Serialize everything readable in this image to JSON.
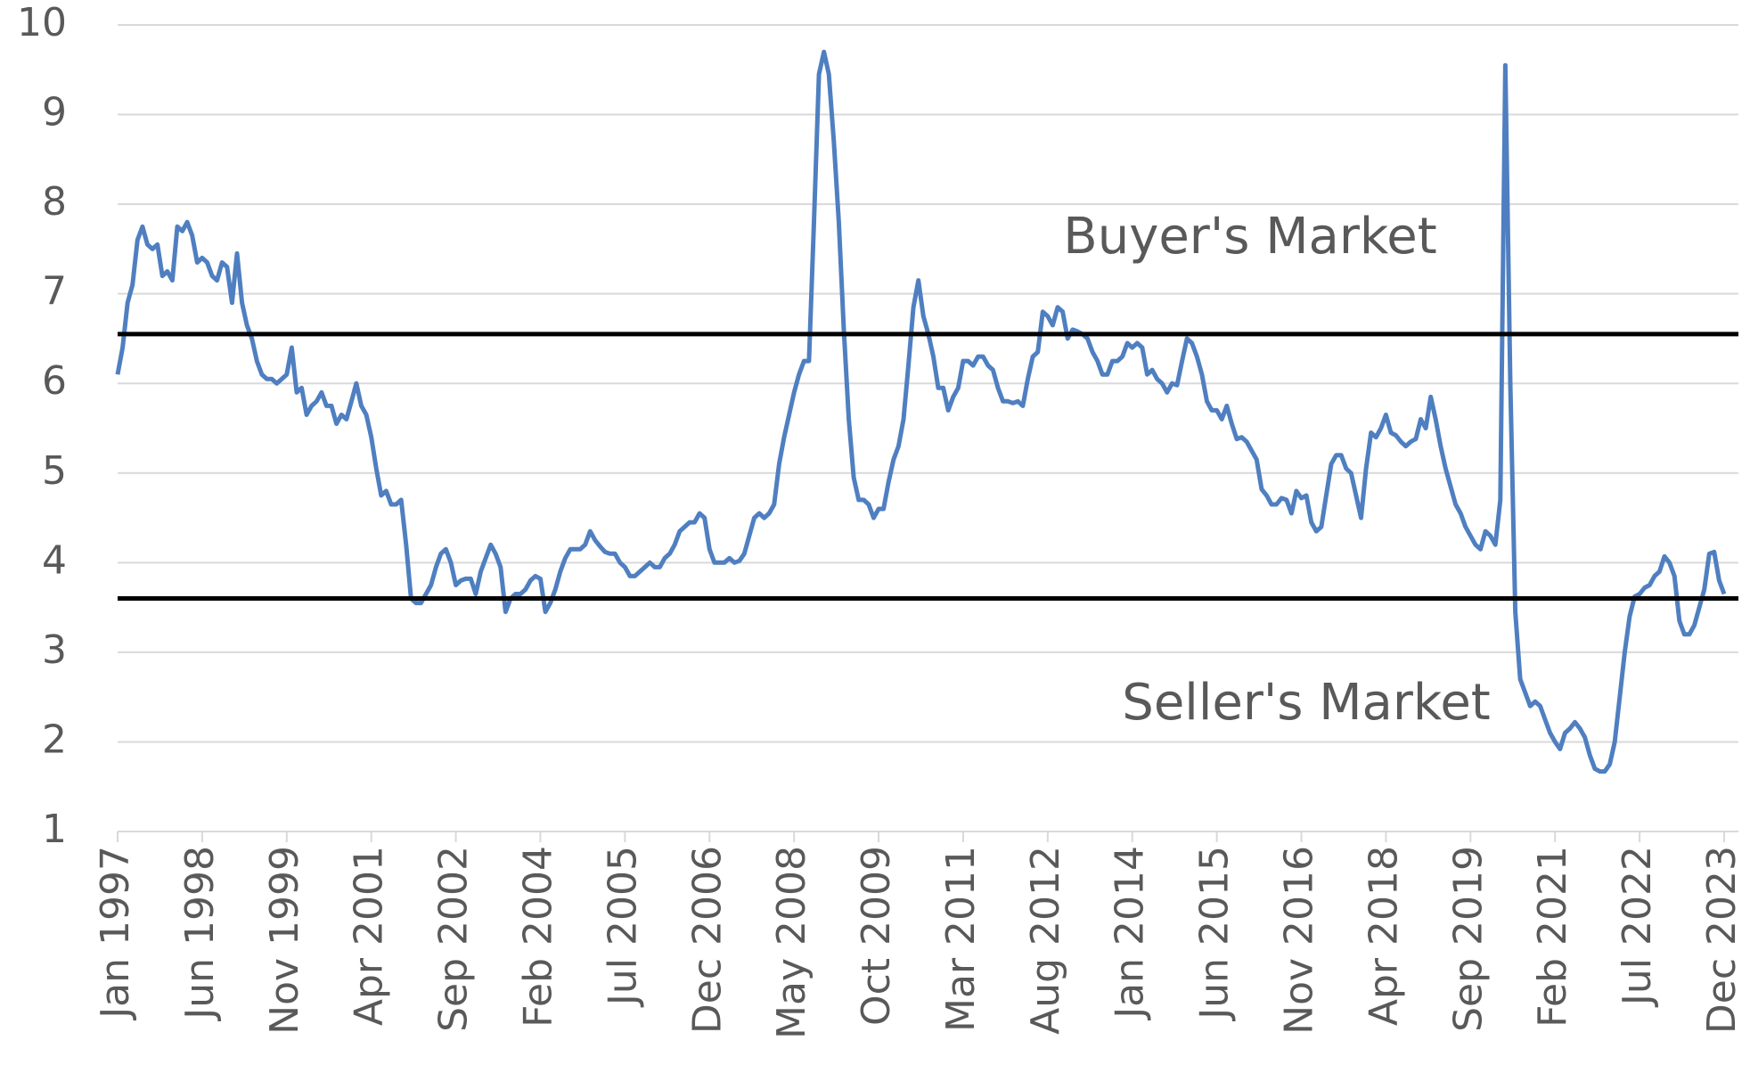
{
  "chart_data": {
    "type": "line",
    "annotations": [
      "Buyer's Market",
      "Seller's Market"
    ],
    "reference_lines": [
      6.55,
      3.6
    ],
    "reference_color": "#000000",
    "categories": [
      "Jan 1997",
      null,
      null,
      null,
      null,
      null,
      null,
      null,
      null,
      null,
      null,
      null,
      null,
      null,
      null,
      null,
      null,
      "Jun 1998",
      null,
      null,
      null,
      null,
      null,
      null,
      null,
      null,
      null,
      null,
      null,
      null,
      null,
      null,
      null,
      null,
      "Nov 1999",
      null,
      null,
      null,
      null,
      null,
      null,
      null,
      null,
      null,
      null,
      null,
      null,
      null,
      null,
      null,
      null,
      "Apr 2001",
      null,
      null,
      null,
      null,
      null,
      null,
      null,
      null,
      null,
      null,
      null,
      null,
      null,
      null,
      null,
      null,
      "Sep 2002",
      null,
      null,
      null,
      null,
      null,
      null,
      null,
      null,
      null,
      null,
      null,
      null,
      null,
      null,
      null,
      null,
      "Feb 2004",
      null,
      null,
      null,
      null,
      null,
      null,
      null,
      null,
      null,
      null,
      null,
      null,
      null,
      null,
      null,
      null,
      "Jul 2005",
      null,
      null,
      null,
      null,
      null,
      null,
      null,
      null,
      null,
      null,
      null,
      null,
      null,
      null,
      null,
      null,
      "Dec 2006",
      null,
      null,
      null,
      null,
      null,
      null,
      null,
      null,
      null,
      null,
      null,
      null,
      null,
      null,
      null,
      null,
      "May 2008",
      null,
      null,
      null,
      null,
      null,
      null,
      null,
      null,
      null,
      null,
      null,
      null,
      null,
      null,
      null,
      null,
      "Oct 2009",
      null,
      null,
      null,
      null,
      null,
      null,
      null,
      null,
      null,
      null,
      null,
      null,
      null,
      null,
      null,
      null,
      "Mar 2011",
      null,
      null,
      null,
      null,
      null,
      null,
      null,
      null,
      null,
      null,
      null,
      null,
      null,
      null,
      null,
      null,
      "Aug 2012",
      null,
      null,
      null,
      null,
      null,
      null,
      null,
      null,
      null,
      null,
      null,
      null,
      null,
      null,
      null,
      null,
      "Jan 2014",
      null,
      null,
      null,
      null,
      null,
      null,
      null,
      null,
      null,
      null,
      null,
      null,
      null,
      null,
      null,
      null,
      "Jun 2015",
      null,
      null,
      null,
      null,
      null,
      null,
      null,
      null,
      null,
      null,
      null,
      null,
      null,
      null,
      null,
      null,
      "Nov 2016",
      null,
      null,
      null,
      null,
      null,
      null,
      null,
      null,
      null,
      null,
      null,
      null,
      null,
      null,
      null,
      null,
      "Apr 2018",
      null,
      null,
      null,
      null,
      null,
      null,
      null,
      null,
      null,
      null,
      null,
      null,
      null,
      null,
      null,
      null,
      "Sep 2019",
      null,
      null,
      null,
      null,
      null,
      null,
      null,
      null,
      null,
      null,
      null,
      null,
      null,
      null,
      null,
      null,
      "Feb 2021",
      null,
      null,
      null,
      null,
      null,
      null,
      null,
      null,
      null,
      null,
      null,
      null,
      null,
      null,
      null,
      null,
      "Jul 2022",
      null,
      null,
      null,
      null,
      null,
      null,
      null,
      null,
      null,
      null,
      null,
      null,
      null,
      null,
      null,
      null,
      "Dec 2023"
    ],
    "series": [
      {
        "color": "#4f7fc0",
        "values": [
          6.1,
          6.4,
          6.9,
          7.1,
          7.6,
          7.75,
          7.55,
          7.5,
          7.55,
          7.2,
          7.25,
          7.15,
          7.75,
          7.7,
          7.8,
          7.65,
          7.35,
          7.4,
          7.35,
          7.2,
          7.15,
          7.35,
          7.3,
          6.9,
          7.45,
          6.9,
          6.65,
          6.5,
          6.25,
          6.1,
          6.05,
          6.05,
          6.0,
          6.05,
          6.1,
          6.4,
          5.9,
          5.95,
          5.65,
          5.75,
          5.8,
          5.9,
          5.75,
          5.75,
          5.55,
          5.65,
          5.6,
          5.8,
          6.0,
          5.75,
          5.65,
          5.4,
          5.05,
          4.75,
          4.8,
          4.65,
          4.65,
          4.7,
          4.2,
          3.6,
          3.55,
          3.55,
          3.65,
          3.75,
          3.95,
          4.1,
          4.15,
          4.0,
          3.75,
          3.8,
          3.82,
          3.82,
          3.65,
          3.9,
          4.05,
          4.2,
          4.1,
          3.95,
          3.45,
          3.6,
          3.65,
          3.65,
          3.7,
          3.8,
          3.85,
          3.82,
          3.45,
          3.55,
          3.7,
          3.9,
          4.05,
          4.15,
          4.15,
          4.15,
          4.2,
          4.35,
          4.25,
          4.18,
          4.12,
          4.1,
          4.1,
          4.0,
          3.95,
          3.85,
          3.85,
          3.9,
          3.95,
          4.0,
          3.95,
          3.95,
          4.05,
          4.1,
          4.2,
          4.35,
          4.4,
          4.45,
          4.45,
          4.55,
          4.5,
          4.15,
          4.0,
          4.0,
          4.0,
          4.05,
          4.0,
          4.02,
          4.1,
          4.3,
          4.5,
          4.55,
          4.5,
          4.55,
          4.65,
          5.1,
          5.4,
          5.65,
          5.9,
          6.1,
          6.25,
          6.25,
          7.8,
          9.45,
          9.7,
          9.45,
          8.7,
          7.8,
          6.6,
          5.6,
          4.95,
          4.7,
          4.7,
          4.65,
          4.5,
          4.6,
          4.6,
          4.9,
          5.15,
          5.3,
          5.6,
          6.2,
          6.85,
          7.15,
          6.75,
          6.55,
          6.3,
          5.95,
          5.95,
          5.7,
          5.85,
          5.95,
          6.25,
          6.25,
          6.2,
          6.3,
          6.3,
          6.2,
          6.15,
          5.95,
          5.8,
          5.8,
          5.78,
          5.8,
          5.75,
          6.05,
          6.3,
          6.35,
          6.8,
          6.75,
          6.65,
          6.85,
          6.8,
          6.5,
          6.6,
          6.58,
          6.55,
          6.5,
          6.35,
          6.25,
          6.1,
          6.1,
          6.25,
          6.25,
          6.3,
          6.45,
          6.4,
          6.45,
          6.4,
          6.1,
          6.15,
          6.05,
          6.0,
          5.9,
          6.0,
          5.98,
          6.25,
          6.5,
          6.45,
          6.3,
          6.1,
          5.8,
          5.7,
          5.7,
          5.6,
          5.75,
          5.55,
          5.38,
          5.4,
          5.35,
          5.25,
          5.15,
          4.82,
          4.75,
          4.65,
          4.65,
          4.72,
          4.7,
          4.55,
          4.8,
          4.72,
          4.75,
          4.45,
          4.35,
          4.4,
          4.75,
          5.1,
          5.2,
          5.2,
          5.05,
          5.0,
          4.75,
          4.5,
          5.05,
          5.45,
          5.4,
          5.5,
          5.65,
          5.45,
          5.42,
          5.35,
          5.3,
          5.35,
          5.38,
          5.6,
          5.5,
          5.85,
          5.6,
          5.3,
          5.05,
          4.85,
          4.65,
          4.55,
          4.4,
          4.3,
          4.2,
          4.15,
          4.35,
          4.3,
          4.2,
          4.7,
          9.55,
          6.0,
          3.45,
          2.7,
          2.55,
          2.4,
          2.45,
          2.4,
          2.25,
          2.1,
          2.0,
          1.92,
          2.1,
          2.15,
          2.22,
          2.15,
          2.05,
          1.85,
          1.7,
          1.67,
          1.67,
          1.75,
          2.0,
          2.5,
          3.0,
          3.4,
          3.62,
          3.65,
          3.72,
          3.75,
          3.85,
          3.9,
          4.07,
          4.0,
          3.85,
          3.35,
          3.2,
          3.2,
          3.3,
          3.5,
          3.7,
          4.1,
          4.12,
          3.8,
          3.65
        ]
      }
    ],
    "ylim": [
      1,
      10
    ],
    "yticks": [
      1,
      2,
      3,
      4,
      5,
      6,
      7,
      8,
      9,
      10
    ],
    "grid": true
  }
}
